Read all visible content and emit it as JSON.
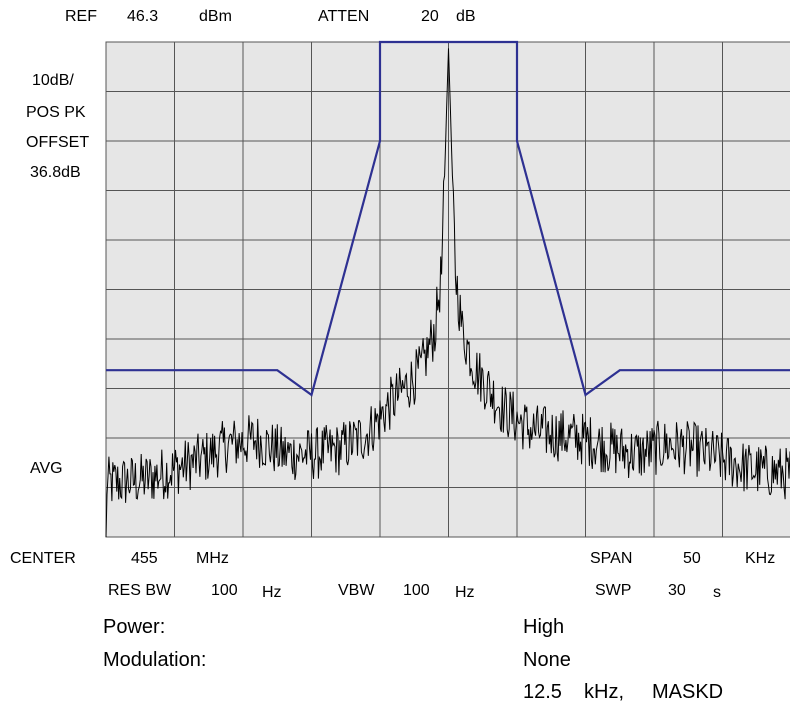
{
  "header": {
    "ref_label": "REF",
    "ref_value": "46.3",
    "ref_unit": "dBm",
    "atten_label": "ATTEN",
    "atten_value": "20",
    "atten_unit": "dB"
  },
  "left_panel": {
    "scale": "10dB/",
    "detector": "POS PK",
    "offset_label": "OFFSET",
    "offset_value": "36.8dB",
    "avg_label": "AVG"
  },
  "footer": {
    "center_label": "CENTER",
    "center_value": "455",
    "center_unit": "MHz",
    "span_label": "SPAN",
    "span_value": "50",
    "span_unit": "KHz",
    "rbw_label": "RES BW",
    "rbw_value": "100",
    "rbw_unit": "Hz",
    "vbw_label": "VBW",
    "vbw_value": "100",
    "vbw_unit": "Hz",
    "swp_label": "SWP",
    "swp_value": "30",
    "swp_unit": "s"
  },
  "settings": {
    "power_label": "Power:",
    "power_value": "High",
    "modulation_label": "Modulation:",
    "modulation_value": "None",
    "channel_value": "12.5",
    "channel_unit": "kHz,",
    "mask_label": "MASKD"
  },
  "chart_data": {
    "type": "line",
    "ref_level_dbm": 46.3,
    "scale_db_per_div": 10,
    "divisions_x": 10,
    "divisions_y": 10,
    "grid": true,
    "colors": {
      "trace": "#000000",
      "mask": "#2e3192",
      "grid": "#555555",
      "background": "#e6e6e6"
    },
    "x_unit": "kHz offset from center",
    "xlim": [
      -25,
      25
    ],
    "ylim_dbm": [
      -53.7,
      46.3
    ],
    "series": [
      {
        "role": "mask",
        "x": [
          -25,
          -12.5,
          -10,
          -5,
          -5,
          5,
          5,
          10,
          12.5,
          25
        ],
        "y": [
          -20,
          -20,
          -25,
          26.3,
          46.3,
          46.3,
          26.3,
          -25,
          -20,
          -20
        ]
      },
      {
        "role": "trace",
        "x": [
          -25,
          -22,
          -18,
          -16,
          -14,
          -12,
          -10,
          -8,
          -6,
          -4,
          -2,
          -1,
          -0.5,
          0,
          0.5,
          1,
          2,
          4,
          6,
          8,
          10,
          12,
          14,
          16,
          18,
          20,
          22,
          25
        ],
        "y": [
          -43,
          -42,
          -38,
          -35,
          -34,
          -37,
          -37,
          -36,
          -33,
          -26,
          -20,
          -12,
          0,
          45,
          0,
          -12,
          -20,
          -28,
          -32,
          -33,
          -34,
          -36,
          -37,
          -35,
          -36,
          -38,
          -40,
          -41
        ]
      }
    ]
  }
}
